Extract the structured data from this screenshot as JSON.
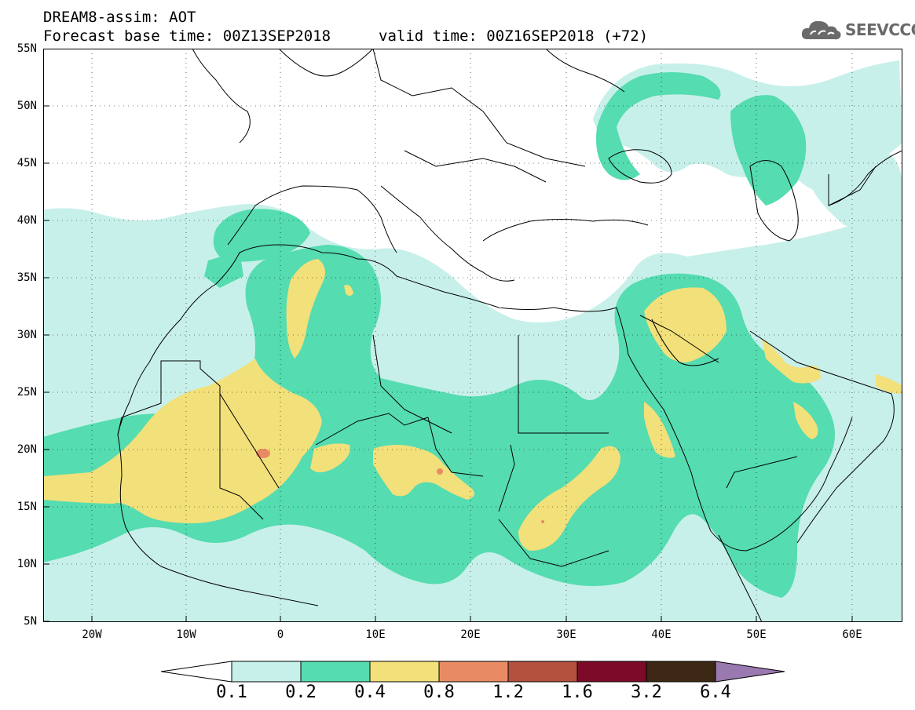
{
  "title": {
    "line1": "DREAM8-assim: AOT",
    "base_time": "Forecast base time: 00Z13SEP2018",
    "valid_time": "valid time: 00Z16SEP2018 (+72)"
  },
  "logo": {
    "text": "SEEVCCC",
    "icon": "cloud-icon"
  },
  "axes": {
    "lat_labels": [
      "55N",
      "50N",
      "45N",
      "40N",
      "35N",
      "30N",
      "25N",
      "20N",
      "15N",
      "10N",
      "5N"
    ],
    "lon_labels": [
      "20W",
      "10W",
      "0",
      "10E",
      "20E",
      "30E",
      "40E",
      "50E",
      "60E"
    ]
  },
  "colorbar": {
    "labels": [
      "0.1",
      "0.2",
      "0.4",
      "0.8",
      "1.2",
      "1.6",
      "3.2",
      "6.4"
    ],
    "colors": [
      "#c8f0ea",
      "#55dcb0",
      "#f2e07a",
      "#e88b65",
      "#b4503e",
      "#7d0a28",
      "#3c2814",
      "#9a78b0"
    ]
  },
  "colors": {
    "land_outline": "#000000",
    "background": "#ffffff",
    "level_0_1": "#c8f0ea",
    "level_0_2": "#55dcb0",
    "level_0_4": "#f2e07a",
    "level_0_8": "#e88b65"
  }
}
